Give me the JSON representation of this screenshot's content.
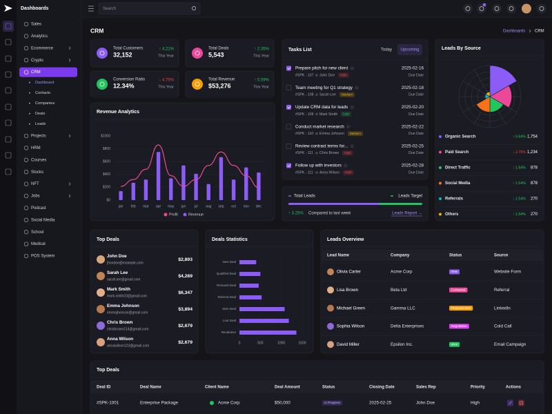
{
  "sidebar": {
    "brand": "Dashboards",
    "items": [
      {
        "label": "Sales"
      },
      {
        "label": "Analytics"
      },
      {
        "label": "Ecommerce",
        "has_submenu": true
      },
      {
        "label": "Crypto",
        "has_submenu": true
      },
      {
        "label": "CRM",
        "active": true,
        "children": [
          {
            "label": "Dashboard",
            "active": true
          },
          {
            "label": "Contacts"
          },
          {
            "label": "Companies"
          },
          {
            "label": "Deals"
          },
          {
            "label": "Leads"
          }
        ]
      },
      {
        "label": "Projects",
        "has_submenu": true
      },
      {
        "label": "HRM"
      },
      {
        "label": "Courses"
      },
      {
        "label": "Stocks"
      },
      {
        "label": "NFT",
        "has_submenu": true
      },
      {
        "label": "Jobs",
        "has_submenu": true
      },
      {
        "label": "Podcast"
      },
      {
        "label": "Social Media"
      },
      {
        "label": "School"
      },
      {
        "label": "Medical"
      },
      {
        "label": "POS System"
      }
    ]
  },
  "topbar": {
    "search_placeholder": "Search"
  },
  "header": {
    "title": "CRM",
    "breadcrumb": [
      "Dashboards",
      "CRM"
    ]
  },
  "stats": [
    {
      "label": "Total Customers",
      "value": "32,152",
      "change": "↑ 4.21%",
      "change_color": "#22c55e",
      "period": "This Year",
      "color": "#8b5cf6"
    },
    {
      "label": "Total Deals",
      "value": "5,543",
      "change": "↑ 2.35%",
      "change_color": "#22c55e",
      "period": "This Year",
      "color": "#ec4899"
    },
    {
      "label": "Conversion Ratio",
      "value": "12.34%",
      "change": "↓ 4.75%",
      "change_color": "#ef4444",
      "period": "This Year",
      "color": "#22c55e"
    },
    {
      "label": "Total Revenue",
      "value": "$53,276",
      "change": "↑ 0.59%",
      "change_color": "#22c55e",
      "period": "This Year",
      "color": "#f59e0b"
    }
  ],
  "tasks": {
    "title": "Tasks List",
    "tabs": [
      "Today",
      "Upcoming"
    ],
    "due_label": "Due Date",
    "items": [
      {
        "title": "Prepare pitch for new client",
        "id": "#SPK - 107",
        "assignee": "John Doe",
        "priority": "High",
        "priority_color": "#ef4444",
        "date": "2025-02-16",
        "done": true
      },
      {
        "title": "Team meeting for Q1 strategy",
        "id": "#SPK - 108",
        "assignee": "Sarah Lee",
        "priority": "Medium",
        "priority_color": "#eab308",
        "date": "2025-02-18",
        "done": false
      },
      {
        "title": "Update CRM data for leads",
        "id": "#SPK - 109",
        "assignee": "Mark Smith",
        "priority": "Low",
        "priority_color": "#22c55e",
        "date": "2025-02-20",
        "done": true
      },
      {
        "title": "Conduct market research",
        "id": "#SPK - 110",
        "assignee": "Emma Johnson",
        "priority": "Medium",
        "priority_color": "#eab308",
        "date": "2025-02-22",
        "done": false
      },
      {
        "title": "Review contract terms for...",
        "id": "#SPK - 111",
        "assignee": "Chris Brown",
        "priority": "High",
        "priority_color": "#ef4444",
        "date": "2025-02-25",
        "done": false
      },
      {
        "title": "Follow up with investors",
        "id": "#SPK - 111",
        "assignee": "Anna Wilson",
        "priority": "High",
        "priority_color": "#ef4444",
        "date": "2025-02-28",
        "done": true
      }
    ]
  },
  "leads_progress": {
    "total_label": "Total Leads",
    "target_label": "Leads Target",
    "change": "↑ 3.25%",
    "compare": "Compared to last week",
    "link": "Leads Report →"
  },
  "top_deals": {
    "title": "Top Deals",
    "items": [
      {
        "name": "John Doe",
        "email": "jhondoe@example.com",
        "amount": "$2,893"
      },
      {
        "name": "Sarah Lee",
        "email": "sarah.lee@gmail.com",
        "amount": "$4,289"
      },
      {
        "name": "Mark Smith",
        "email": "mark.smith23@gmail.com",
        "amount": "$6,347"
      },
      {
        "name": "Emma Johnson",
        "email": "emmajhonson@gmail.com",
        "amount": "$3,894"
      },
      {
        "name": "Chris Brown",
        "email": "chrisbrown214@gmail.com",
        "amount": "$2,679"
      },
      {
        "name": "Anna Wilson",
        "email": "annawilson123@gmail.com",
        "amount": "$2,679"
      }
    ]
  },
  "leads_overview": {
    "title": "Leads Overview",
    "headers": [
      "Lead Name",
      "Company",
      "Status",
      "Source"
    ],
    "rows": [
      {
        "name": "Olivia Carter",
        "company": "Acme Corp",
        "status": "New",
        "status_color": "#8b5cf6",
        "source": "Website Form"
      },
      {
        "name": "Lisa Brown",
        "company": "Beta Ltd",
        "status": "Contacted",
        "status_color": "#ec4899",
        "source": "Referral"
      },
      {
        "name": "Michael Green",
        "company": "Gamma LLC",
        "status": "Proposal Sent",
        "status_color": "#f59e0b",
        "source": "LinkedIn"
      },
      {
        "name": "Sophia Wilson",
        "company": "Delta Enterprises",
        "status": "Negotiation",
        "status_color": "#d946ef",
        "source": "Cold Call"
      },
      {
        "name": "David Miller",
        "company": "Epsilon Inc.",
        "status": "Won",
        "status_color": "#22c55e",
        "source": "Email Campaign"
      }
    ]
  },
  "deals_table": {
    "title": "Top Deals",
    "headers": [
      "Deal ID",
      "Deal Name",
      "Client Name",
      "Deal Amount",
      "Status",
      "Closing Date",
      "Sales Rep",
      "Priority",
      "Actions"
    ],
    "rows": [
      {
        "id": "#SPK-1001",
        "deal": "Enterprise Package",
        "client": "Acme Corp",
        "amount": "$50,000",
        "status": "In Progress",
        "status_color": "#8b5cf6",
        "closing": "2025-02-25",
        "rep": "John Doe",
        "priority": "High"
      }
    ]
  },
  "chart_data": [
    {
      "type": "combo",
      "title": "Revenue Analytics",
      "categories": [
        "jan",
        "feb",
        "mar",
        "apr",
        "may",
        "jun",
        "jul",
        "aug",
        "sep",
        "oct",
        "nov",
        "dec"
      ],
      "series": [
        {
          "name": "Profit",
          "type": "line",
          "color": "#ec4899",
          "values": [
            215,
            320,
            480,
            860,
            380,
            215,
            320,
            540,
            750,
            540,
            380,
            195
          ]
        },
        {
          "name": "Revenue",
          "type": "bar",
          "color": "#8b5cf6",
          "values": [
            140,
            270,
            320,
            750,
            340,
            540,
            410,
            250,
            670,
            320,
            510,
            430
          ]
        }
      ],
      "ylim": [
        0,
        1000
      ],
      "yticks": [
        {
          "value": 0,
          "label": "$0"
        },
        {
          "value": 200,
          "label": "$200"
        },
        {
          "value": 400,
          "label": "$400"
        },
        {
          "value": 600,
          "label": "$600"
        },
        {
          "value": 800,
          "label": "$800"
        },
        {
          "value": 1000,
          "label": "$1000"
        }
      ],
      "grid": true
    },
    {
      "type": "hbar",
      "title": "Deals Statistics",
      "categories": [
        "New Deal",
        "Qualified Deal",
        "Renewal Deal",
        "Referral Deal",
        "Won Deal",
        "Lost Deal",
        "Revalution"
      ],
      "values": [
        400,
        500,
        460,
        530,
        1080,
        1180,
        1360
      ],
      "color": "#8b5cf6",
      "xlim": [
        0,
        1500
      ],
      "xticks": [
        0,
        500,
        1000,
        1500
      ]
    },
    {
      "type": "polar",
      "title": "Leads By Source",
      "categories": [
        "Organic Search",
        "Paid Search",
        "Direct Traffic",
        "Social Media",
        "Referrals",
        "Others"
      ],
      "values": [
        1754,
        1234,
        878,
        878,
        270,
        270
      ],
      "value_labels": [
        "1,754",
        "1,234",
        "878",
        "878",
        "270",
        "270"
      ],
      "changes": [
        "↑ 0.64%",
        "↓ 2.75%",
        "↑ 1.54%",
        "↑ 1.54%",
        "↑ 1.54%",
        "↑ 1.54%"
      ],
      "change_colors": [
        "#22c55e",
        "#ef4444",
        "#22c55e",
        "#22c55e",
        "#22c55e",
        "#22c55e"
      ],
      "colors": [
        "#8b5cf6",
        "#ec4899",
        "#22c55e",
        "#f97316",
        "#06b6d4",
        "#eab308"
      ]
    }
  ]
}
